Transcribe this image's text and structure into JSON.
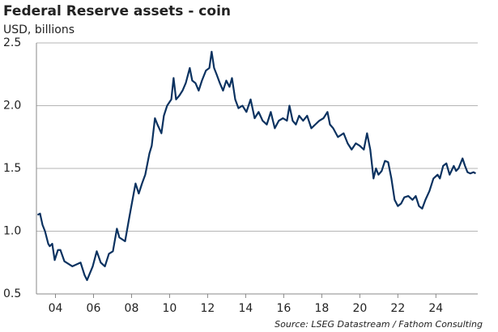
{
  "chart_data": {
    "type": "line",
    "title": "Federal Reserve assets - coin",
    "subtitle": "USD, billions",
    "source": "Source: LSEG Datastream / Fathom Consulting",
    "xlim": [
      2003,
      2026.2
    ],
    "xticks": [
      {
        "value": 2004,
        "label": "04"
      },
      {
        "value": 2006,
        "label": "06"
      },
      {
        "value": 2008,
        "label": "08"
      },
      {
        "value": 2010,
        "label": "10"
      },
      {
        "value": 2012,
        "label": "12"
      },
      {
        "value": 2014,
        "label": "14"
      },
      {
        "value": 2016,
        "label": "16"
      },
      {
        "value": 2018,
        "label": "18"
      },
      {
        "value": 2020,
        "label": "20"
      },
      {
        "value": 2022,
        "label": "22"
      },
      {
        "value": 2024,
        "label": "24"
      }
    ],
    "ylim": [
      0.5,
      2.5
    ],
    "yticks": [
      0.5,
      {
        "value": 1.0,
        "label": "1.0"
      },
      1.5,
      {
        "value": 2.0,
        "label": "2.0"
      },
      2.5
    ],
    "grid": true,
    "series": [
      {
        "name": "Coin",
        "color": "#0b3260",
        "x": [
          2003.06,
          2003.19,
          2003.32,
          2003.45,
          2003.62,
          2003.7,
          2003.83,
          2003.96,
          2004.13,
          2004.26,
          2004.47,
          2004.89,
          2005.32,
          2005.53,
          2005.66,
          2005.96,
          2006.17,
          2006.38,
          2006.6,
          2006.81,
          2007.02,
          2007.23,
          2007.36,
          2007.66,
          2007.87,
          2007.99,
          2008.21,
          2008.38,
          2008.55,
          2008.72,
          2008.94,
          2009.06,
          2009.23,
          2009.36,
          2009.57,
          2009.7,
          2009.87,
          2010.09,
          2010.21,
          2010.34,
          2010.51,
          2010.68,
          2010.85,
          2011.06,
          2011.19,
          2011.36,
          2011.53,
          2011.7,
          2011.91,
          2012.09,
          2012.21,
          2012.34,
          2012.47,
          2012.64,
          2012.81,
          2012.98,
          2013.15,
          2013.28,
          2013.45,
          2013.62,
          2013.83,
          2014.04,
          2014.26,
          2014.47,
          2014.68,
          2014.89,
          2015.11,
          2015.32,
          2015.53,
          2015.74,
          2015.96,
          2016.17,
          2016.3,
          2016.47,
          2016.64,
          2016.81,
          2017.02,
          2017.23,
          2017.45,
          2017.66,
          2017.87,
          2018.09,
          2018.3,
          2018.43,
          2018.6,
          2018.85,
          2019.15,
          2019.36,
          2019.57,
          2019.79,
          2020.0,
          2020.21,
          2020.38,
          2020.55,
          2020.72,
          2020.85,
          2020.98,
          2021.15,
          2021.32,
          2021.49,
          2021.66,
          2021.83,
          2022.0,
          2022.17,
          2022.34,
          2022.55,
          2022.77,
          2022.94,
          2023.11,
          2023.28,
          2023.45,
          2023.66,
          2023.87,
          2024.09,
          2024.21,
          2024.38,
          2024.55,
          2024.72,
          2024.94,
          2025.06,
          2025.19,
          2025.4,
          2025.53,
          2025.66,
          2025.81,
          2025.98,
          2026.09
        ],
        "values": [
          1.13,
          1.14,
          1.05,
          1.0,
          0.9,
          0.88,
          0.9,
          0.77,
          0.85,
          0.85,
          0.76,
          0.72,
          0.75,
          0.65,
          0.61,
          0.72,
          0.84,
          0.75,
          0.72,
          0.82,
          0.84,
          1.02,
          0.95,
          0.92,
          1.1,
          1.2,
          1.38,
          1.3,
          1.38,
          1.45,
          1.62,
          1.68,
          1.9,
          1.85,
          1.78,
          1.92,
          2.0,
          2.05,
          2.22,
          2.05,
          2.08,
          2.12,
          2.18,
          2.3,
          2.2,
          2.18,
          2.12,
          2.2,
          2.28,
          2.3,
          2.43,
          2.3,
          2.25,
          2.18,
          2.12,
          2.2,
          2.15,
          2.22,
          2.05,
          1.98,
          2.0,
          1.95,
          2.05,
          1.9,
          1.95,
          1.88,
          1.85,
          1.95,
          1.82,
          1.88,
          1.9,
          1.88,
          2.0,
          1.88,
          1.85,
          1.92,
          1.88,
          1.92,
          1.82,
          1.85,
          1.88,
          1.9,
          1.95,
          1.85,
          1.82,
          1.75,
          1.78,
          1.7,
          1.65,
          1.7,
          1.68,
          1.65,
          1.78,
          1.65,
          1.42,
          1.5,
          1.45,
          1.48,
          1.56,
          1.55,
          1.42,
          1.25,
          1.2,
          1.22,
          1.27,
          1.28,
          1.25,
          1.28,
          1.2,
          1.18,
          1.25,
          1.32,
          1.42,
          1.45,
          1.42,
          1.52,
          1.54,
          1.45,
          1.52,
          1.48,
          1.5,
          1.58,
          1.52,
          1.47,
          1.46,
          1.47,
          1.46
        ]
      }
    ]
  }
}
